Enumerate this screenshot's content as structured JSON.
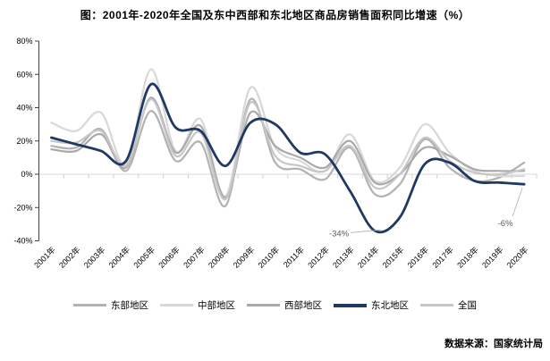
{
  "title": "图：2001年-2020年全国及东中西部和东北地区商品房销售面积同比增速（%）",
  "source": "数据来源：国家统计局",
  "chart_data": {
    "type": "line",
    "smoothed": true,
    "grid": "zero-line-only",
    "legend_position": "bottom",
    "x": [
      "2001年",
      "2002年",
      "2003年",
      "2004年",
      "2005年",
      "2006年",
      "2007年",
      "2008年",
      "2009年",
      "2010年",
      "2011年",
      "2012年",
      "2013年",
      "2014年",
      "2015年",
      "2016年",
      "2017年",
      "2018年",
      "2019年",
      "2020年"
    ],
    "y_axis": {
      "unit": "%",
      "min": -40,
      "max": 80,
      "tick_values": [
        80,
        60,
        40,
        20,
        0,
        -20,
        -40
      ],
      "tick_labels": [
        "80%",
        "60%",
        "40%",
        "20%",
        "0%",
        "-20%",
        "-40%"
      ]
    },
    "series": [
      {
        "key": "east",
        "name": "东部地区",
        "color": "#b2b2b2",
        "width": 2.2,
        "values": [
          17,
          16,
          27,
          2,
          38,
          8,
          19,
          -19,
          45,
          7,
          3,
          -3,
          16,
          -12,
          -6,
          21,
          4,
          -4,
          -2,
          7
        ]
      },
      {
        "key": "central",
        "name": "中部地区",
        "color": "#d8d8d8",
        "width": 2.2,
        "values": [
          31,
          26,
          37,
          6,
          63,
          14,
          33,
          -13,
          52,
          16,
          8,
          2,
          24,
          -4,
          4,
          30,
          13,
          2,
          -1,
          -1
        ]
      },
      {
        "key": "west",
        "name": "西部地区",
        "color": "#a9a9a9",
        "width": 2.2,
        "values": [
          15,
          14,
          24,
          4,
          46,
          13,
          29,
          -14,
          37,
          17,
          10,
          4,
          20,
          -5,
          0,
          16,
          11,
          3,
          2,
          2
        ]
      },
      {
        "key": "national",
        "name": "全国",
        "color": "#c6c6c6",
        "width": 2.2,
        "values": [
          20,
          19,
          26,
          5,
          45,
          11,
          25,
          -15,
          43,
          11,
          5,
          2,
          17,
          -8,
          0,
          22,
          8,
          1,
          0,
          3
        ]
      },
      {
        "key": "northeast",
        "name": "东北地区",
        "color": "#1f3864",
        "width": 2.8,
        "values": [
          22,
          18,
          14,
          8,
          54,
          28,
          26,
          5,
          31,
          30,
          13,
          12,
          -10,
          -34,
          -26,
          6,
          7,
          -4,
          -5,
          -6
        ]
      }
    ],
    "legend_order": [
      "east",
      "central",
      "west",
      "northeast",
      "national"
    ],
    "annotations": [
      {
        "text": "-34%",
        "series": "northeast",
        "x": "2014年",
        "value": -34
      },
      {
        "text": "-6%",
        "series": "northeast",
        "x": "2020年",
        "value": -6
      }
    ],
    "annotation_color": "#595959"
  }
}
